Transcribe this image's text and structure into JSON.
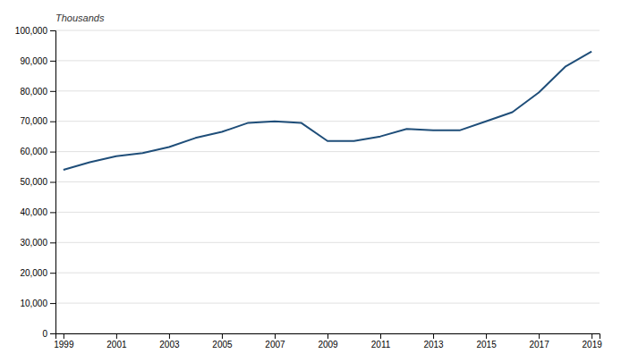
{
  "chart_data": {
    "type": "line",
    "ylabel": "Thousands",
    "x": [
      1999,
      2000,
      2001,
      2002,
      2003,
      2004,
      2005,
      2006,
      2007,
      2008,
      2009,
      2010,
      2011,
      2012,
      2013,
      2014,
      2015,
      2016,
      2017,
      2018,
      2019
    ],
    "values": [
      54000,
      56500,
      58500,
      59500,
      61500,
      64500,
      66500,
      69500,
      70000,
      69500,
      63500,
      63500,
      65000,
      67500,
      67000,
      67000,
      70000,
      73000,
      79500,
      88000,
      93000
    ],
    "color": "#1f4e79",
    "xlim": [
      1998.7,
      2019.3
    ],
    "xticks": [
      1999,
      2001,
      2003,
      2005,
      2007,
      2009,
      2011,
      2013,
      2015,
      2017,
      2019
    ],
    "ylim": [
      0,
      100000
    ],
    "yticks": [
      0,
      {
        "value": 10000,
        "label": "10,000"
      },
      {
        "value": 20000,
        "label": "20,000"
      },
      {
        "value": 30000,
        "label": "30,000"
      },
      {
        "value": 40000,
        "label": "40,000"
      },
      {
        "value": 50000,
        "label": "50,000"
      },
      {
        "value": 60000,
        "label": "60,000"
      },
      {
        "value": 70000,
        "label": "70,000"
      },
      {
        "value": 80000,
        "label": "80,000"
      },
      {
        "value": 90000,
        "label": "90,000"
      },
      {
        "value": 100000,
        "label": "100,000"
      }
    ],
    "grid": true
  }
}
